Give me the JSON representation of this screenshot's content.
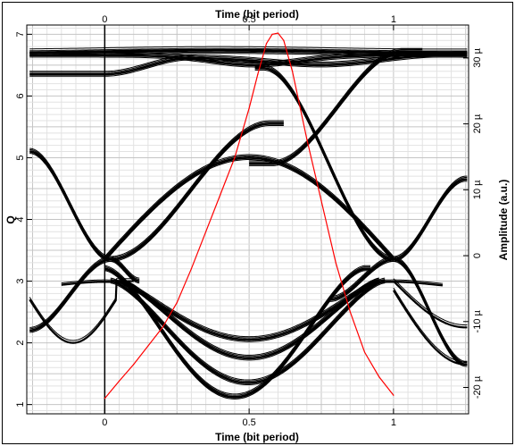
{
  "chart_data": {
    "type": "line",
    "title": "",
    "x_axis_top": {
      "label": "Time (bit period)",
      "ticks": [
        {
          "value": 0,
          "label": "0"
        },
        {
          "value": 0.5,
          "label": "0.5"
        },
        {
          "value": 1,
          "label": "1"
        }
      ]
    },
    "x_axis_bottom": {
      "label": "Time (bit period)",
      "ticks": [
        {
          "value": 0,
          "label": "0"
        },
        {
          "value": 0.5,
          "label": "0.5"
        },
        {
          "value": 1,
          "label": "1"
        }
      ]
    },
    "xlim": [
      -0.27,
      1.26
    ],
    "y_axis_left": {
      "label": "Q",
      "ylim": [
        0.85,
        7.15
      ],
      "ticks": [
        {
          "value": 1,
          "label": "1"
        },
        {
          "value": 2,
          "label": "2"
        },
        {
          "value": 3,
          "label": "3"
        },
        {
          "value": 4,
          "label": "4"
        },
        {
          "value": 5,
          "label": "5"
        },
        {
          "value": 6,
          "label": "6"
        },
        {
          "value": 7,
          "label": "7"
        }
      ]
    },
    "y_axis_right": {
      "label": "Amplitude (a.u.)",
      "ylim": [
        -24,
        35
      ],
      "ticks": [
        {
          "value": -20,
          "label": "-20 µ"
        },
        {
          "value": -10,
          "label": "-10 µ"
        },
        {
          "value": 0,
          "label": "0"
        },
        {
          "value": 10,
          "label": "10 µ"
        },
        {
          "value": 20,
          "label": "20 µ"
        },
        {
          "value": 30,
          "label": "30 µ"
        }
      ]
    },
    "grid": true,
    "eye_traces_color": "#000000",
    "series": [
      {
        "name": "",
        "color": "#ff0000",
        "axis": "left",
        "x": [
          0.0,
          0.05,
          0.1,
          0.15,
          0.2,
          0.25,
          0.3,
          0.35,
          0.4,
          0.45,
          0.5,
          0.53,
          0.56,
          0.58,
          0.6,
          0.62,
          0.65,
          0.7,
          0.75,
          0.8,
          0.85,
          0.9,
          0.95,
          1.0
        ],
        "values": [
          1.1,
          1.38,
          1.65,
          1.95,
          2.25,
          2.65,
          3.2,
          3.8,
          4.4,
          5.0,
          5.8,
          6.35,
          6.85,
          7.0,
          7.02,
          6.9,
          6.4,
          5.3,
          4.3,
          3.3,
          2.5,
          1.85,
          1.45,
          1.15
        ]
      }
    ]
  }
}
